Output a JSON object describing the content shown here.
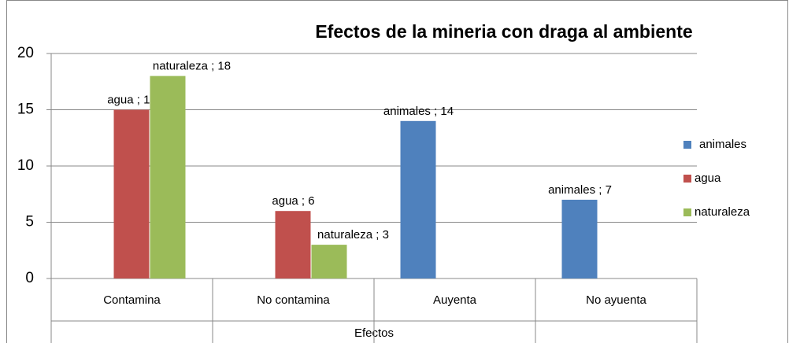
{
  "chart_data": {
    "type": "bar",
    "title": "Efectos de la mineria con draga al ambiente",
    "x_label": "Efectos",
    "categories": [
      "Contamina",
      "No contamina",
      "Auyenta",
      "No ayuenta"
    ],
    "series": [
      {
        "name": "animales",
        "color": "#4f81bd",
        "values": [
          null,
          null,
          14,
          7
        ],
        "value_labels": [
          null,
          null,
          "animales ; 14",
          "animales ; 7"
        ]
      },
      {
        "name": "agua",
        "color": "#c0504d",
        "values": [
          15,
          6,
          null,
          null
        ],
        "value_labels": [
          "agua ; 15",
          "agua ; 6",
          null,
          null
        ]
      },
      {
        "name": "naturaleza",
        "color": "#9bbb59",
        "values": [
          18,
          3,
          null,
          null
        ],
        "value_labels": [
          "naturaleza ; 18",
          "naturaleza ; 3",
          null,
          null
        ]
      }
    ],
    "ylim": [
      0,
      20
    ],
    "yticks": [
      0,
      5,
      10,
      15,
      20
    ],
    "grid": true,
    "legend": "right"
  }
}
